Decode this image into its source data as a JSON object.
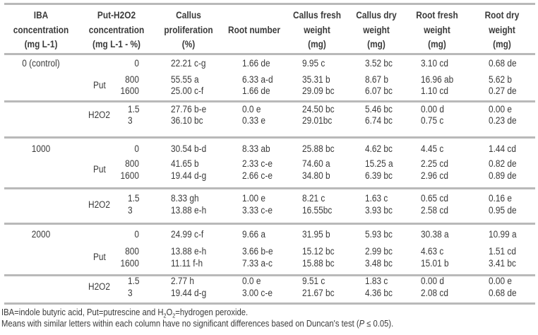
{
  "table": {
    "headers": [
      {
        "lines": [
          "IBA",
          "concentration",
          "(mg L-1)"
        ]
      },
      {
        "lines": [
          "Put-H2O2",
          "concentration",
          "(mg L-1 - %)"
        ]
      },
      {
        "lines": [
          "Callus",
          "proliferation",
          "(%)"
        ]
      },
      {
        "lines": [
          "Root number"
        ]
      },
      {
        "lines": [
          "Callus fresh",
          "weight",
          "(mg)"
        ]
      },
      {
        "lines": [
          "Callus dry",
          "weight",
          "(mg)"
        ]
      },
      {
        "lines": [
          "Root fresh",
          "weight",
          "(mg)"
        ]
      },
      {
        "lines": [
          "Root dry",
          "weight",
          "(mg)"
        ]
      }
    ],
    "groups": [
      {
        "iba": "0 (control)",
        "put_label": "Put",
        "h2o2_label": "H2O2",
        "put_rows": [
          {
            "conc": "0",
            "values": [
              "22.21 c-g",
              "1.66 de",
              "9.95 c",
              "3.52 bc",
              "3.10 cd",
              "0.68 de"
            ]
          },
          {
            "conc": "800",
            "values": [
              "55.55 a",
              "6.33 a-d",
              "35.31 b",
              "8.67 b",
              "16.96 ab",
              "5.62 b"
            ]
          },
          {
            "conc": "1600",
            "values": [
              "25.00 c-f",
              "1.66 de",
              "29.09 bc",
              "6.07 bc",
              "1.10 cd",
              "0.27 de"
            ]
          }
        ],
        "h2o2_rows": [
          {
            "conc": "1.5",
            "values": [
              "27.76 b-e",
              "0.0 e",
              "24.50 bc",
              "5.46 bc",
              "0.00 d",
              "0.00 e"
            ]
          },
          {
            "conc": "3",
            "values": [
              "36.10 bc",
              "0.33 e",
              "29.01bc",
              "6.74 bc",
              "0.75 c",
              "0.23 de"
            ]
          }
        ]
      },
      {
        "iba": "1000",
        "put_label": "Put",
        "h2o2_label": "H2O2",
        "put_rows": [
          {
            "conc": "0",
            "values": [
              "30.54 b-d",
              "8.33 ab",
              "25.88 bc",
              "4.62 bc",
              "4.45 c",
              "1.44 cd"
            ]
          },
          {
            "conc": "800",
            "values": [
              "41.65 b",
              "2.33 c-e",
              "74.60 a",
              "15.25 a",
              "2.25 cd",
              "0.82 de"
            ]
          },
          {
            "conc": "1600",
            "values": [
              "19.44 d-g",
              "2.66 c-e",
              "34.80 b",
              "6.39 bc",
              "2.96 cd",
              "0.89 de"
            ]
          }
        ],
        "h2o2_rows": [
          {
            "conc": "1.5",
            "values": [
              "8.33 gh",
              "1.00 e",
              "8.21 c",
              "1.63 c",
              "0.65 cd",
              "0.16 e"
            ]
          },
          {
            "conc": "3",
            "values": [
              "13.88 e-h",
              "3.33 c-e",
              "16.55bc",
              "3.93 bc",
              "2.58 cd",
              "0.95 de"
            ]
          }
        ]
      },
      {
        "iba": "2000",
        "put_label": "Put",
        "h2o2_label": "H2O2",
        "put_rows": [
          {
            "conc": "0",
            "values": [
              "24.99 c-f",
              "9.66 a",
              "31.95 b",
              "5.93 bc",
              "30.38 a",
              "10.99 a"
            ]
          },
          {
            "conc": "800",
            "values": [
              "13.88 e-h",
              "3.66 b-e",
              "15.12 bc",
              "2.99 bc",
              "4.63 c",
              "1.51 cd"
            ]
          },
          {
            "conc": "1600",
            "values": [
              "11.11 f-h",
              "7.33 a-c",
              "15.88 bc",
              "3.48 bc",
              "15.01 b",
              "3.41 bc"
            ]
          }
        ],
        "h2o2_rows": [
          {
            "conc": "1.5",
            "values": [
              "2.77 h",
              "0.0 e",
              "9.51 c",
              "1.83 c",
              "0.00 d",
              "0.00 e"
            ]
          },
          {
            "conc": "3",
            "values": [
              "19.44 d-g",
              "3.00 c-e",
              "21.67 bc",
              "4.36 bc",
              "2.08 cd",
              "0.68 de"
            ]
          }
        ]
      }
    ]
  },
  "footnotes": [
    "IBA=indole butyric acid, Put=putrescine and H2O2=hydrogen peroxide.",
    "Means with similar letters within each column have no significant differences based on Duncan's test (P ≤ 0.05)."
  ]
}
